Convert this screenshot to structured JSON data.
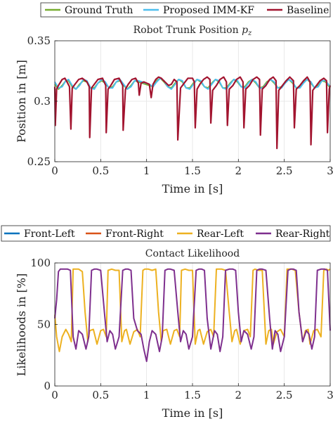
{
  "chart_data": [
    {
      "type": "line",
      "title": "Robot Trunk Position",
      "title_symbol": "p",
      "title_subscript": "z",
      "xlabel": "Time in [s]",
      "ylabel": "Position in [m]",
      "xlim": [
        0,
        3
      ],
      "ylim": [
        0.25,
        0.35
      ],
      "xticks": [
        "0",
        "0.5",
        "1",
        "1.5",
        "2",
        "2.5",
        "3"
      ],
      "yticks": [
        "0.25",
        "0.3",
        "0.35"
      ],
      "grid": true,
      "legend_position": "top",
      "series": [
        {
          "name": "Ground Truth",
          "color": "#77ac30",
          "x": [
            0,
            0.04,
            0.08,
            0.12,
            0.15,
            0.19,
            0.23,
            0.27,
            0.31,
            0.35,
            0.39,
            0.43,
            0.47,
            0.51,
            0.55,
            0.59,
            0.63,
            0.67,
            0.71,
            0.75,
            0.79,
            0.83,
            0.87,
            0.91,
            0.95,
            0.99,
            1.03,
            1.07,
            1.11,
            1.15,
            1.19,
            1.23,
            1.27,
            1.31,
            1.35,
            1.39,
            1.43,
            1.47,
            1.51,
            1.55,
            1.59,
            1.63,
            1.67,
            1.71,
            1.75,
            1.79,
            1.83,
            1.87,
            1.91,
            1.95,
            1.99,
            2.03,
            2.07,
            2.11,
            2.15,
            2.19,
            2.23,
            2.27,
            2.31,
            2.35,
            2.39,
            2.43,
            2.47,
            2.51,
            2.55,
            2.59,
            2.63,
            2.67,
            2.71,
            2.75,
            2.79,
            2.83,
            2.87,
            2.91,
            2.95,
            3.0
          ],
          "y": [
            0.314,
            0.31,
            0.313,
            0.317,
            0.317,
            0.312,
            0.31,
            0.314,
            0.317,
            0.316,
            0.311,
            0.311,
            0.315,
            0.317,
            0.315,
            0.311,
            0.312,
            0.316,
            0.317,
            0.313,
            0.31,
            0.313,
            0.317,
            0.316,
            0.315,
            0.314,
            0.313,
            0.312,
            0.317,
            0.319,
            0.316,
            0.312,
            0.311,
            0.315,
            0.318,
            0.316,
            0.311,
            0.311,
            0.315,
            0.318,
            0.316,
            0.312,
            0.311,
            0.315,
            0.318,
            0.316,
            0.311,
            0.311,
            0.315,
            0.318,
            0.316,
            0.312,
            0.312,
            0.316,
            0.318,
            0.315,
            0.311,
            0.312,
            0.316,
            0.318,
            0.315,
            0.311,
            0.312,
            0.316,
            0.318,
            0.315,
            0.311,
            0.312,
            0.316,
            0.318,
            0.315,
            0.311,
            0.313,
            0.317,
            0.316,
            0.311
          ]
        },
        {
          "name": "Proposed IMM-KF",
          "color": "#4dbeee",
          "x": [
            0,
            0.04,
            0.08,
            0.12,
            0.15,
            0.19,
            0.23,
            0.27,
            0.31,
            0.35,
            0.39,
            0.43,
            0.47,
            0.51,
            0.55,
            0.59,
            0.63,
            0.67,
            0.71,
            0.75,
            0.79,
            0.83,
            0.87,
            0.91,
            0.95,
            0.99,
            1.03,
            1.07,
            1.11,
            1.15,
            1.19,
            1.23,
            1.27,
            1.31,
            1.35,
            1.39,
            1.43,
            1.47,
            1.51,
            1.55,
            1.59,
            1.63,
            1.67,
            1.71,
            1.75,
            1.79,
            1.83,
            1.87,
            1.91,
            1.95,
            1.99,
            2.03,
            2.07,
            2.11,
            2.15,
            2.19,
            2.23,
            2.27,
            2.31,
            2.35,
            2.39,
            2.43,
            2.47,
            2.51,
            2.55,
            2.59,
            2.63,
            2.67,
            2.71,
            2.75,
            2.79,
            2.83,
            2.87,
            2.91,
            2.95,
            3.0
          ],
          "y": [
            0.316,
            0.311,
            0.312,
            0.317,
            0.318,
            0.313,
            0.31,
            0.313,
            0.318,
            0.317,
            0.311,
            0.31,
            0.315,
            0.318,
            0.316,
            0.311,
            0.311,
            0.316,
            0.318,
            0.314,
            0.31,
            0.312,
            0.317,
            0.317,
            0.316,
            0.315,
            0.314,
            0.312,
            0.316,
            0.319,
            0.317,
            0.312,
            0.31,
            0.314,
            0.318,
            0.317,
            0.311,
            0.31,
            0.314,
            0.318,
            0.317,
            0.312,
            0.31,
            0.314,
            0.318,
            0.317,
            0.311,
            0.31,
            0.314,
            0.318,
            0.317,
            0.312,
            0.311,
            0.315,
            0.318,
            0.316,
            0.311,
            0.311,
            0.315,
            0.318,
            0.316,
            0.311,
            0.311,
            0.315,
            0.318,
            0.316,
            0.311,
            0.311,
            0.315,
            0.318,
            0.316,
            0.311,
            0.312,
            0.317,
            0.317,
            0.312
          ]
        },
        {
          "name": "Baseline",
          "color": "#a2142f",
          "x": [
            0,
            0.005,
            0.02,
            0.04,
            0.08,
            0.11,
            0.14,
            0.16,
            0.175,
            0.19,
            0.22,
            0.26,
            0.3,
            0.35,
            0.375,
            0.38,
            0.4,
            0.43,
            0.47,
            0.52,
            0.555,
            0.56,
            0.58,
            0.61,
            0.65,
            0.7,
            0.74,
            0.745,
            0.77,
            0.8,
            0.84,
            0.88,
            0.91,
            0.92,
            0.94,
            0.97,
            1.0,
            1.03,
            1.05,
            1.07,
            1.1,
            1.13,
            1.16,
            1.2,
            1.24,
            1.27,
            1.3,
            1.33,
            1.34,
            1.37,
            1.41,
            1.45,
            1.5,
            1.52,
            1.53,
            1.55,
            1.58,
            1.62,
            1.66,
            1.69,
            1.7,
            1.72,
            1.76,
            1.8,
            1.84,
            1.87,
            1.88,
            1.9,
            1.94,
            1.98,
            2.02,
            2.05,
            2.06,
            2.08,
            2.12,
            2.16,
            2.2,
            2.23,
            2.24,
            2.26,
            2.3,
            2.34,
            2.38,
            2.41,
            2.42,
            2.44,
            2.48,
            2.52,
            2.56,
            2.6,
            2.61,
            2.63,
            2.67,
            2.71,
            2.75,
            2.78,
            2.79,
            2.81,
            2.85,
            2.89,
            2.93,
            2.96,
            2.97,
            2.99,
            3.0
          ],
          "y": [
            0.312,
            0.28,
            0.31,
            0.313,
            0.318,
            0.319,
            0.315,
            0.312,
            0.277,
            0.311,
            0.314,
            0.318,
            0.319,
            0.316,
            0.312,
            0.27,
            0.311,
            0.314,
            0.318,
            0.319,
            0.313,
            0.274,
            0.31,
            0.313,
            0.318,
            0.319,
            0.313,
            0.276,
            0.31,
            0.314,
            0.318,
            0.319,
            0.315,
            0.305,
            0.315,
            0.316,
            0.315,
            0.314,
            0.303,
            0.314,
            0.318,
            0.32,
            0.319,
            0.316,
            0.313,
            0.314,
            0.318,
            0.316,
            0.268,
            0.311,
            0.315,
            0.319,
            0.319,
            0.316,
            0.278,
            0.31,
            0.314,
            0.318,
            0.32,
            0.318,
            0.282,
            0.309,
            0.313,
            0.318,
            0.32,
            0.316,
            0.28,
            0.31,
            0.313,
            0.318,
            0.32,
            0.316,
            0.278,
            0.31,
            0.313,
            0.318,
            0.32,
            0.318,
            0.272,
            0.31,
            0.313,
            0.318,
            0.32,
            0.317,
            0.261,
            0.309,
            0.313,
            0.317,
            0.32,
            0.317,
            0.278,
            0.31,
            0.313,
            0.317,
            0.32,
            0.316,
            0.264,
            0.309,
            0.313,
            0.317,
            0.319,
            0.317,
            0.274,
            0.31,
            0.313
          ]
        }
      ]
    },
    {
      "type": "line",
      "title": "Contact Likelihood",
      "xlabel": "Time in [s]",
      "ylabel": "Likelihoods in [%]",
      "xlim": [
        0,
        3
      ],
      "ylim": [
        0,
        100
      ],
      "xticks": [
        "0",
        "0.5",
        "1",
        "1.5",
        "2",
        "2.5",
        "3"
      ],
      "yticks": [
        "0",
        "50",
        "100"
      ],
      "grid": true,
      "legend_position": "top",
      "series": [
        {
          "name": "Front-Left",
          "color": "#0072bd",
          "x": [],
          "y": []
        },
        {
          "name": "Front-Right",
          "color": "#d95319",
          "x": [],
          "y": []
        },
        {
          "name": "Rear-Left",
          "color": "#edb120",
          "x": [
            0,
            0.02,
            0.05,
            0.08,
            0.12,
            0.15,
            0.18,
            0.2,
            0.23,
            0.26,
            0.3,
            0.33,
            0.36,
            0.38,
            0.42,
            0.46,
            0.5,
            0.53,
            0.56,
            0.58,
            0.62,
            0.66,
            0.7,
            0.73,
            0.76,
            0.78,
            0.82,
            0.86,
            0.9,
            0.93,
            0.96,
            0.98,
            1.02,
            1.06,
            1.1,
            1.13,
            1.16,
            1.18,
            1.22,
            1.26,
            1.3,
            1.33,
            1.36,
            1.38,
            1.42,
            1.46,
            1.5,
            1.53,
            1.56,
            1.58,
            1.62,
            1.66,
            1.7,
            1.73,
            1.76,
            1.78,
            1.82,
            1.86,
            1.9,
            1.93,
            1.96,
            1.98,
            2.02,
            2.06,
            2.1,
            2.13,
            2.16,
            2.18,
            2.22,
            2.26,
            2.3,
            2.33,
            2.36,
            2.38,
            2.42,
            2.46,
            2.5,
            2.53,
            2.56,
            2.58,
            2.62,
            2.66,
            2.7,
            2.73,
            2.76,
            2.78,
            2.82,
            2.86,
            2.9,
            2.93,
            2.96,
            2.98,
            3.0
          ],
          "y": [
            58,
            40,
            28,
            40,
            46,
            42,
            36,
            95,
            95,
            95,
            93,
            60,
            36,
            45,
            46,
            34,
            45,
            46,
            40,
            94,
            95,
            94,
            94,
            36,
            45,
            46,
            34,
            44,
            46,
            40,
            94,
            95,
            95,
            94,
            95,
            60,
            36,
            45,
            46,
            34,
            45,
            46,
            40,
            94,
            95,
            94,
            94,
            34,
            45,
            46,
            34,
            44,
            46,
            40,
            95,
            95,
            95,
            94,
            60,
            36,
            45,
            46,
            34,
            45,
            46,
            40,
            94,
            95,
            94,
            94,
            34,
            45,
            46,
            34,
            44,
            46,
            40,
            95,
            95,
            95,
            94,
            60,
            36,
            45,
            46,
            34,
            45,
            46,
            40,
            94,
            95,
            94,
            95
          ]
        },
        {
          "name": "Rear-Right",
          "color": "#7e2f8e",
          "x": [
            0,
            0.02,
            0.04,
            0.06,
            0.1,
            0.14,
            0.17,
            0.2,
            0.23,
            0.26,
            0.3,
            0.34,
            0.37,
            0.4,
            0.43,
            0.46,
            0.5,
            0.54,
            0.57,
            0.6,
            0.63,
            0.66,
            0.7,
            0.74,
            0.77,
            0.8,
            0.83,
            0.86,
            0.9,
            0.94,
            0.97,
            1.0,
            1.03,
            1.06,
            1.1,
            1.14,
            1.17,
            1.2,
            1.23,
            1.26,
            1.3,
            1.34,
            1.37,
            1.4,
            1.43,
            1.46,
            1.5,
            1.54,
            1.57,
            1.6,
            1.63,
            1.66,
            1.7,
            1.74,
            1.77,
            1.8,
            1.83,
            1.86,
            1.9,
            1.94,
            1.97,
            2.0,
            2.03,
            2.06,
            2.1,
            2.14,
            2.17,
            2.2,
            2.23,
            2.26,
            2.3,
            2.34,
            2.37,
            2.4,
            2.43,
            2.46,
            2.5,
            2.54,
            2.57,
            2.6,
            2.63,
            2.66,
            2.7,
            2.74,
            2.77,
            2.8,
            2.83,
            2.86,
            2.9,
            2.94,
            2.97,
            3.0
          ],
          "y": [
            55,
            70,
            93,
            95,
            95,
            95,
            94,
            40,
            30,
            45,
            42,
            30,
            40,
            94,
            95,
            95,
            94,
            60,
            36,
            45,
            42,
            30,
            40,
            94,
            95,
            95,
            94,
            55,
            45,
            42,
            30,
            20,
            36,
            45,
            42,
            28,
            40,
            94,
            95,
            95,
            94,
            60,
            36,
            45,
            42,
            30,
            40,
            94,
            95,
            95,
            94,
            55,
            30,
            45,
            42,
            28,
            40,
            94,
            95,
            95,
            94,
            60,
            36,
            45,
            42,
            30,
            40,
            94,
            95,
            95,
            94,
            55,
            30,
            45,
            42,
            28,
            40,
            94,
            95,
            95,
            94,
            60,
            36,
            45,
            42,
            30,
            40,
            94,
            95,
            95,
            94,
            45
          ]
        }
      ]
    }
  ]
}
